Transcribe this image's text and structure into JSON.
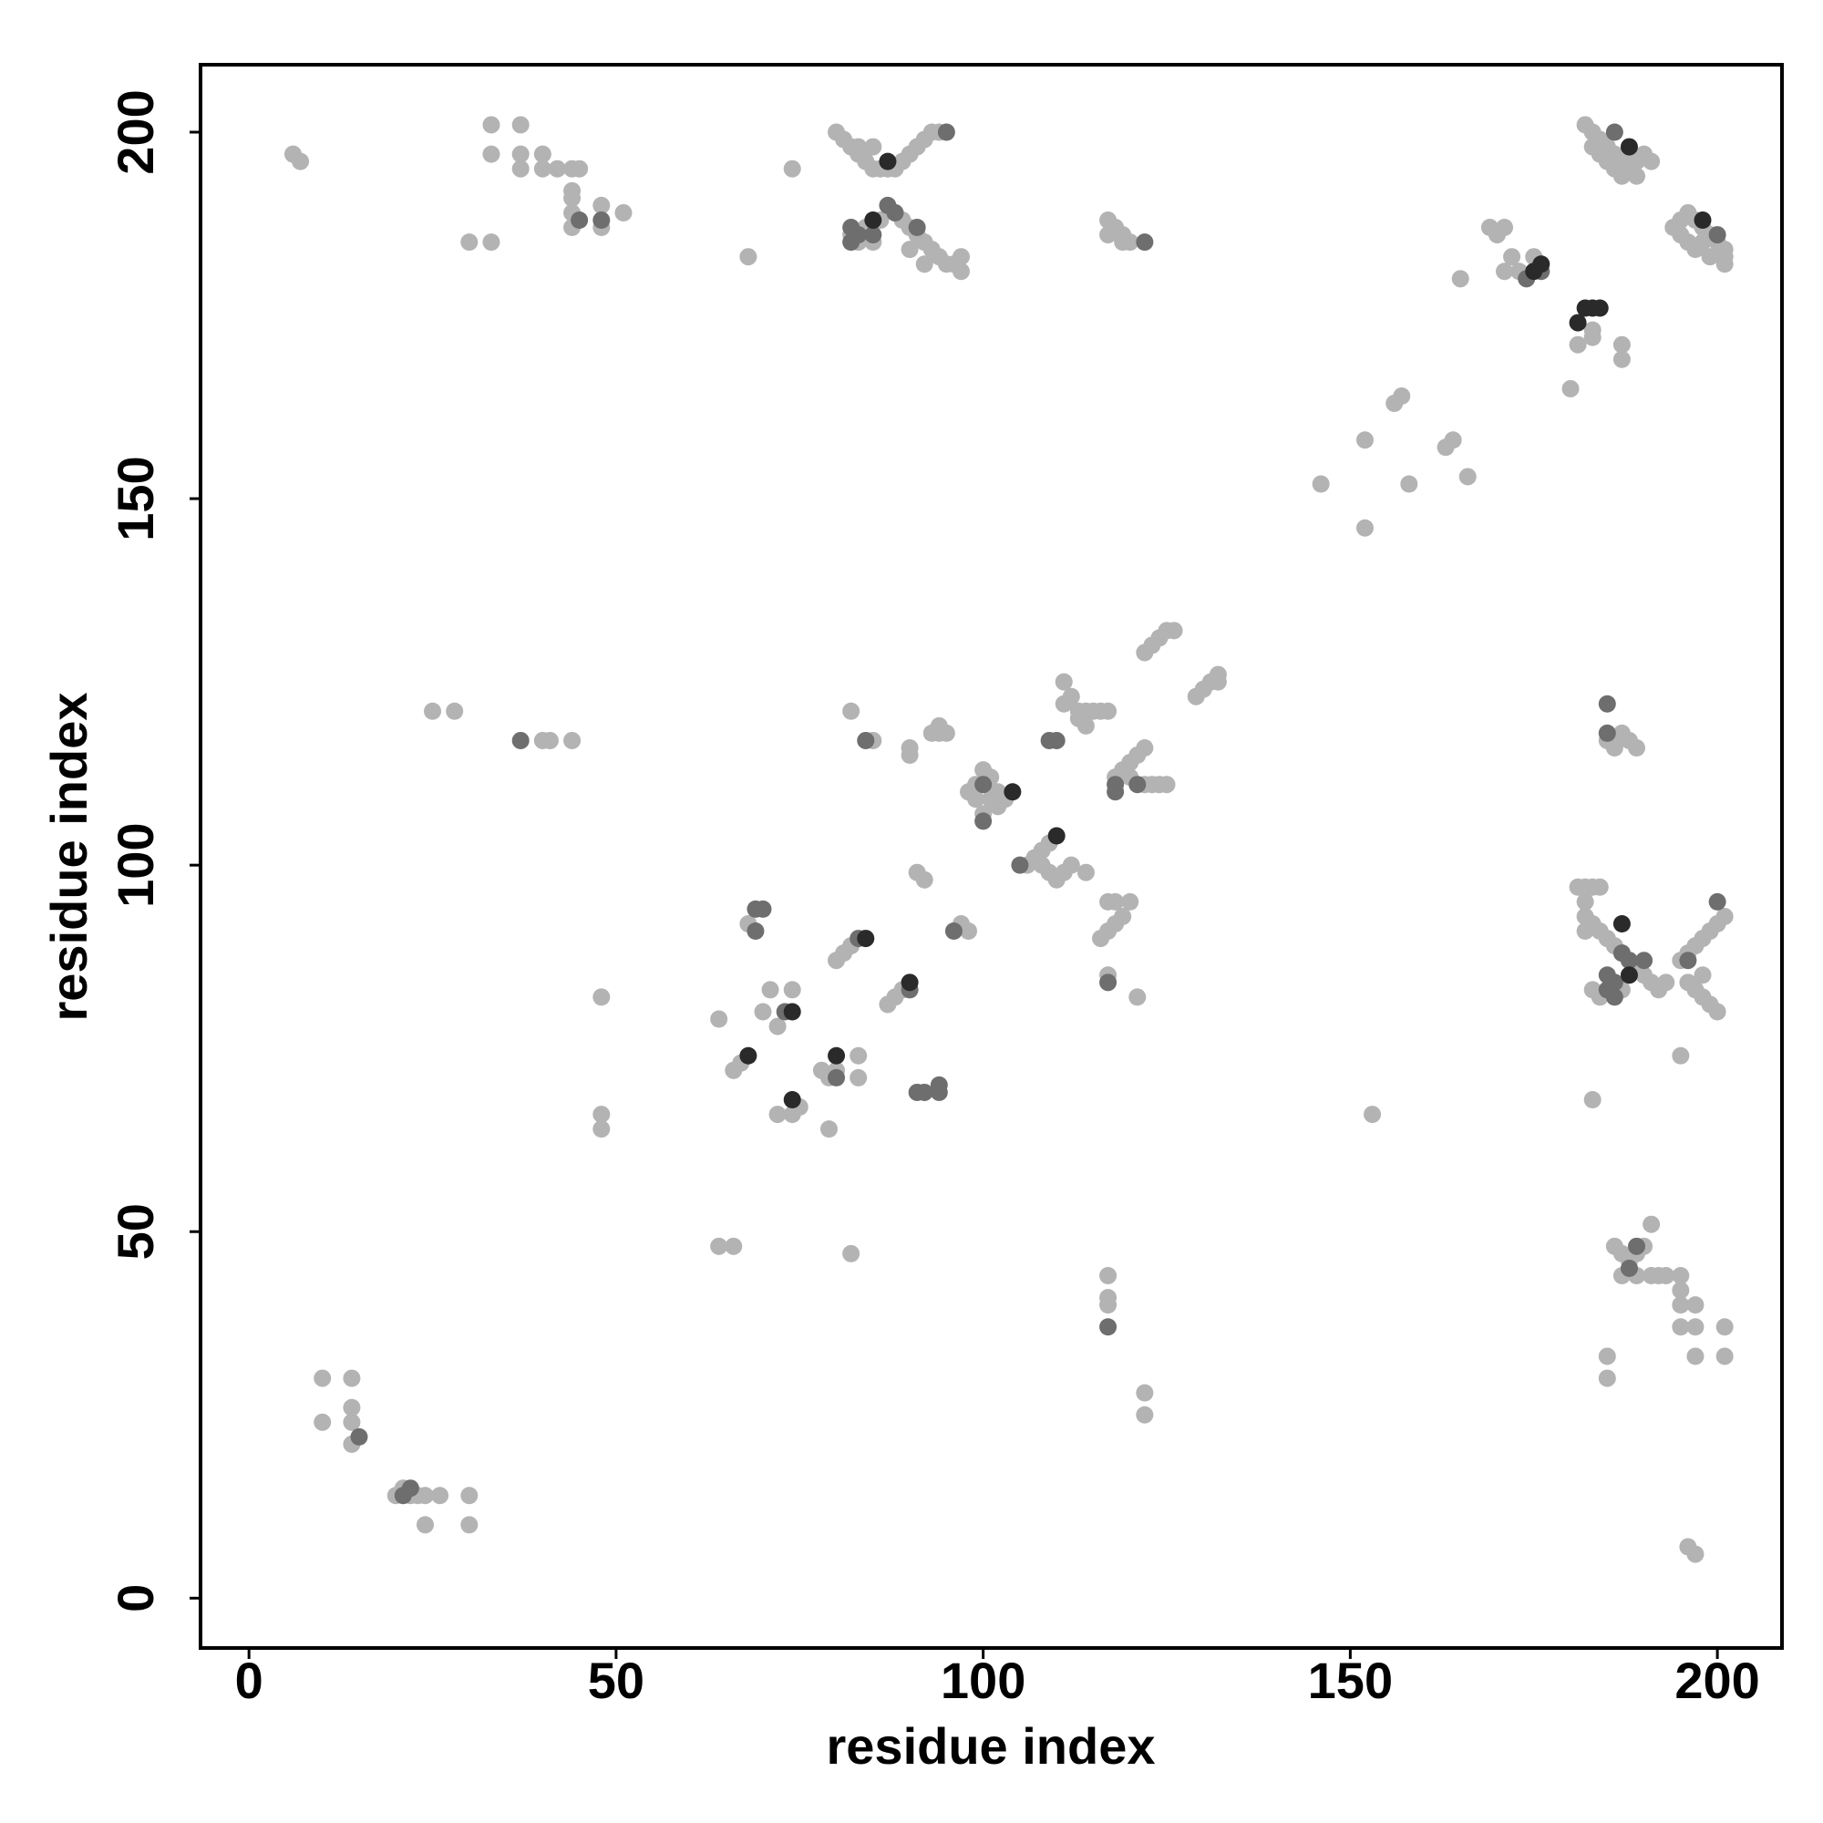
{
  "chart_data": {
    "type": "scatter",
    "xlabel": "residue index",
    "ylabel": "residue index",
    "xlim": [
      -6.6,
      208.8
    ],
    "ylim": [
      -6.8,
      209.2
    ],
    "xticks": [
      0,
      50,
      100,
      150,
      200
    ],
    "yticks": [
      0,
      50,
      100,
      150,
      200
    ],
    "series": [
      {
        "color": "#b3b3b3",
        "x": [
          6,
          7,
          33,
          37,
          33,
          37,
          37,
          40,
          40,
          42,
          44,
          45,
          44,
          44,
          44,
          44,
          48,
          48,
          51,
          30,
          33,
          74,
          68,
          80,
          81,
          82,
          83,
          84,
          85,
          86,
          87,
          88,
          89,
          90,
          91,
          92,
          93,
          94,
          83,
          85,
          84,
          83,
          82,
          85,
          89,
          90,
          91,
          92,
          93,
          94,
          95,
          96,
          97,
          97,
          92,
          90,
          88,
          86,
          117,
          118,
          119,
          117,
          120,
          119,
          169,
          170,
          171,
          172,
          171,
          173,
          175,
          165,
          182,
          183,
          184,
          185,
          186,
          187,
          188,
          189,
          183,
          184,
          185,
          186,
          187,
          188,
          189,
          190,
          191,
          194,
          195,
          196,
          197,
          198,
          199,
          200,
          201,
          201,
          201,
          199,
          197,
          196,
          195,
          198,
          183,
          181,
          183,
          180,
          187,
          187,
          166,
          146,
          152,
          152,
          156,
          157,
          158,
          163,
          164,
          25,
          28,
          40,
          41,
          44,
          85,
          82,
          90,
          90,
          93,
          94,
          95,
          94,
          111,
          112,
          111,
          113,
          114,
          115,
          116,
          117,
          113,
          114,
          122,
          123,
          124,
          125,
          126,
          129,
          130,
          131,
          132,
          132,
          119,
          120,
          121,
          122,
          118,
          120,
          122,
          123,
          124,
          125,
          100,
          101,
          99,
          98,
          99,
          101,
          102,
          103,
          100,
          102,
          106,
          107,
          108,
          109,
          108,
          109,
          110,
          111,
          112,
          114,
          185,
          186,
          187,
          188,
          189,
          181,
          182,
          183,
          184,
          182,
          182,
          182,
          183,
          184,
          185,
          186,
          187,
          188,
          189,
          190,
          191,
          192,
          193,
          195,
          196,
          197,
          198,
          199,
          200,
          201,
          196,
          197,
          198,
          199,
          200,
          198,
          183,
          184,
          186,
          187,
          195,
          183,
          153,
          64,
          66,
          67,
          68,
          70,
          71,
          72,
          74,
          72,
          74,
          75,
          78,
          79,
          80,
          79,
          83,
          83,
          80,
          81,
          82,
          87,
          88,
          89,
          91,
          92,
          97,
          98,
          116,
          117,
          118,
          119,
          117,
          118,
          120,
          117,
          121,
          48,
          48,
          48,
          64,
          66,
          82,
          117,
          117,
          117,
          122,
          122,
          186,
          187,
          188,
          189,
          190,
          191,
          187,
          189,
          191,
          192,
          193,
          195,
          195,
          195,
          195,
          197,
          197,
          197,
          201,
          201,
          185,
          185,
          196,
          197,
          10,
          14,
          10,
          14,
          14,
          14,
          20,
          21,
          22,
          23,
          24,
          26,
          30,
          24,
          30
        ],
        "y": [
          197,
          196,
          201,
          201,
          197,
          197,
          195,
          197,
          195,
          195,
          195,
          195,
          192,
          191,
          189,
          187,
          190,
          187,
          189,
          185,
          185,
          195,
          183,
          200,
          199,
          198,
          197,
          196,
          195,
          195,
          195,
          195,
          196,
          197,
          198,
          199,
          200,
          200,
          198,
          198,
          187,
          185,
          186,
          185,
          188,
          187,
          186,
          185,
          184,
          183,
          182,
          182,
          181,
          183,
          182,
          184,
          189,
          188,
          188,
          187,
          186,
          186,
          185,
          185,
          187,
          186,
          187,
          183,
          181,
          181,
          183,
          180,
          201,
          200,
          199,
          198,
          197,
          196,
          195,
          194,
          198,
          197,
          196,
          195,
          194,
          196,
          196,
          197,
          196,
          187,
          188,
          189,
          188,
          187,
          186,
          185,
          184,
          183,
          182,
          183,
          184,
          185,
          186,
          185,
          173,
          171,
          172,
          165,
          171,
          169,
          153,
          152,
          146,
          158,
          163,
          164,
          152,
          157,
          158,
          121,
          121,
          117,
          117,
          117,
          117,
          121,
          116,
          115,
          118,
          119,
          118,
          118,
          125,
          123,
          122,
          121,
          121,
          121,
          121,
          121,
          120,
          119,
          129,
          130,
          131,
          132,
          132,
          123,
          124,
          125,
          126,
          125,
          113,
          114,
          115,
          116,
          112,
          112,
          111,
          111,
          111,
          111,
          113,
          112,
          111,
          110,
          109,
          109,
          110,
          109,
          107,
          108,
          100,
          101,
          102,
          103,
          100,
          99,
          98,
          99,
          100,
          99,
          117,
          116,
          118,
          117,
          116,
          97,
          97,
          97,
          97,
          95,
          93,
          91,
          92,
          91,
          90,
          89,
          88,
          87,
          86,
          85,
          84,
          83,
          84,
          87,
          88,
          89,
          90,
          91,
          92,
          93,
          84,
          83,
          82,
          81,
          80,
          85,
          83,
          82,
          84,
          83,
          74,
          68,
          66,
          79,
          72,
          73,
          92,
          80,
          83,
          78,
          83,
          66,
          66,
          67,
          72,
          71,
          72,
          64,
          74,
          71,
          87,
          88,
          89,
          81,
          82,
          83,
          99,
          98,
          92,
          91,
          90,
          91,
          92,
          93,
          95,
          95,
          95,
          85,
          82,
          82,
          66,
          64,
          48,
          48,
          47,
          44,
          41,
          40,
          28,
          25,
          48,
          47,
          46,
          47,
          48,
          51,
          44,
          44,
          44,
          44,
          44,
          44,
          42,
          40,
          37,
          40,
          37,
          33,
          37,
          33,
          33,
          30,
          7,
          6,
          30,
          30,
          24,
          26,
          24,
          21,
          14,
          15,
          14,
          14,
          14,
          14,
          14,
          10,
          10
        ]
      },
      {
        "color": "#6e6e6e",
        "x": [
          45,
          48,
          82,
          83,
          85,
          87,
          88,
          91,
          95,
          82,
          122,
          186,
          176,
          174,
          200,
          37,
          84,
          100,
          100,
          109,
          110,
          118,
          118,
          121,
          105,
          185,
          185,
          185,
          186,
          187,
          188,
          190,
          196,
          200,
          185,
          186,
          69,
          69,
          70,
          83,
          90,
          91,
          92,
          94,
          94,
          96,
          73,
          80,
          117,
          117,
          189,
          188,
          15,
          21,
          22
        ],
        "y": [
          188,
          188,
          187,
          186,
          186,
          190,
          189,
          187,
          200,
          185,
          185,
          200,
          181,
          180,
          186,
          117,
          117,
          111,
          106,
          117,
          117,
          110,
          111,
          111,
          100,
          122,
          118,
          85,
          84,
          88,
          87,
          87,
          87,
          95,
          83,
          82,
          91,
          94,
          94,
          90,
          83,
          69,
          69,
          69,
          70,
          91,
          80,
          71,
          84,
          37,
          48,
          45,
          22,
          14,
          15
        ]
      },
      {
        "color": "#2a2a2a",
        "x": [
          85,
          87,
          188,
          198,
          176,
          175,
          181,
          182,
          183,
          184,
          104,
          110,
          188,
          187,
          68,
          74,
          74,
          80,
          84,
          90
        ],
        "y": [
          188,
          196,
          198,
          188,
          182,
          181,
          174,
          176,
          176,
          176,
          110,
          104,
          85,
          92,
          74,
          80,
          68,
          74,
          90,
          84
        ]
      }
    ]
  }
}
